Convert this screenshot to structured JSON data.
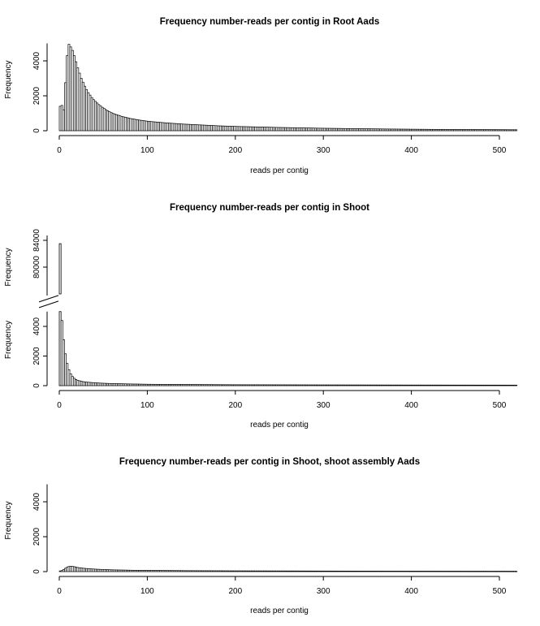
{
  "chart_data": [
    {
      "type": "bar",
      "title": "Frequency number-reads per contig in Root Aads",
      "xlabel": "reads per contig",
      "ylabel": "Frequency",
      "xlim": [
        0,
        520
      ],
      "ylim": [
        0,
        5000
      ],
      "xticks": [
        "0",
        "100",
        "200",
        "300",
        "400",
        "500"
      ],
      "yticks": [
        "0",
        "2000",
        "4000"
      ],
      "bin_width": 2,
      "series": [
        {
          "points": [
            [
              0,
              1400
            ],
            [
              2,
              1450
            ],
            [
              4,
              1200
            ],
            [
              6,
              2750
            ],
            [
              8,
              4300
            ],
            [
              10,
              4950
            ],
            [
              12,
              4800
            ],
            [
              14,
              4600
            ],
            [
              16,
              4300
            ],
            [
              18,
              3950
            ],
            [
              20,
              3600
            ],
            [
              22,
              3300
            ],
            [
              24,
              3000
            ],
            [
              26,
              2780
            ],
            [
              28,
              2550
            ],
            [
              30,
              2360
            ],
            [
              32,
              2180
            ],
            [
              34,
              2040
            ],
            [
              36,
              1900
            ],
            [
              38,
              1780
            ],
            [
              40,
              1680
            ],
            [
              45,
              1450
            ],
            [
              50,
              1270
            ],
            [
              55,
              1110
            ],
            [
              60,
              990
            ],
            [
              70,
              820
            ],
            [
              80,
              700
            ],
            [
              90,
              610
            ],
            [
              100,
              540
            ],
            [
              120,
              450
            ],
            [
              140,
              380
            ],
            [
              160,
              330
            ],
            [
              180,
              280
            ],
            [
              200,
              245
            ],
            [
              250,
              185
            ],
            [
              300,
              140
            ],
            [
              350,
              110
            ],
            [
              400,
              85
            ],
            [
              450,
              70
            ],
            [
              500,
              60
            ],
            [
              520,
              55
            ]
          ]
        }
      ]
    },
    {
      "type": "bar",
      "title": "Frequency number-reads per contig in Shoot",
      "xlabel": "reads per contig",
      "ylabel": "Frequency",
      "xlim": [
        0,
        520
      ],
      "ylim": [
        0,
        5000
      ],
      "y_break": {
        "upper_range": [
          76000,
          84000
        ],
        "upper_ticks": [
          "80000",
          "84000"
        ]
      },
      "xticks": [
        "0",
        "100",
        "200",
        "300",
        "400",
        "500"
      ],
      "yticks": [
        "0",
        "2000",
        "4000"
      ],
      "bin_width": 2,
      "series": [
        {
          "points": [
            [
              0,
              83500
            ],
            [
              2,
              4400
            ],
            [
              4,
              3100
            ],
            [
              6,
              2150
            ],
            [
              8,
              1500
            ],
            [
              10,
              1080
            ],
            [
              12,
              800
            ],
            [
              14,
              620
            ],
            [
              16,
              500
            ],
            [
              18,
              420
            ],
            [
              20,
              360
            ],
            [
              25,
              280
            ],
            [
              30,
              240
            ],
            [
              40,
              190
            ],
            [
              50,
              160
            ],
            [
              60,
              140
            ],
            [
              80,
              115
            ],
            [
              100,
              95
            ],
            [
              150,
              75
            ],
            [
              200,
              62
            ],
            [
              300,
              50
            ],
            [
              400,
              42
            ],
            [
              500,
              38
            ],
            [
              520,
              37
            ]
          ]
        }
      ]
    },
    {
      "type": "bar",
      "title": "Frequency number-reads per contig in Shoot, shoot assembly Aads",
      "xlabel": "reads per contig",
      "ylabel": "Frequency",
      "xlim": [
        0,
        520
      ],
      "ylim": [
        0,
        5000
      ],
      "xticks": [
        "0",
        "100",
        "200",
        "300",
        "400",
        "500"
      ],
      "yticks": [
        "0",
        "2000",
        "4000"
      ],
      "bin_width": 2,
      "series": [
        {
          "points": [
            [
              0,
              40
            ],
            [
              2,
              60
            ],
            [
              4,
              120
            ],
            [
              6,
              190
            ],
            [
              8,
              250
            ],
            [
              10,
              290
            ],
            [
              12,
              310
            ],
            [
              14,
              300
            ],
            [
              16,
              280
            ],
            [
              18,
              255
            ],
            [
              20,
              235
            ],
            [
              25,
              200
            ],
            [
              30,
              175
            ],
            [
              40,
              140
            ],
            [
              50,
              118
            ],
            [
              60,
              100
            ],
            [
              80,
              80
            ],
            [
              100,
              68
            ],
            [
              150,
              52
            ],
            [
              200,
              42
            ],
            [
              300,
              32
            ],
            [
              400,
              26
            ],
            [
              500,
              22
            ],
            [
              520,
              21
            ]
          ]
        }
      ]
    }
  ]
}
